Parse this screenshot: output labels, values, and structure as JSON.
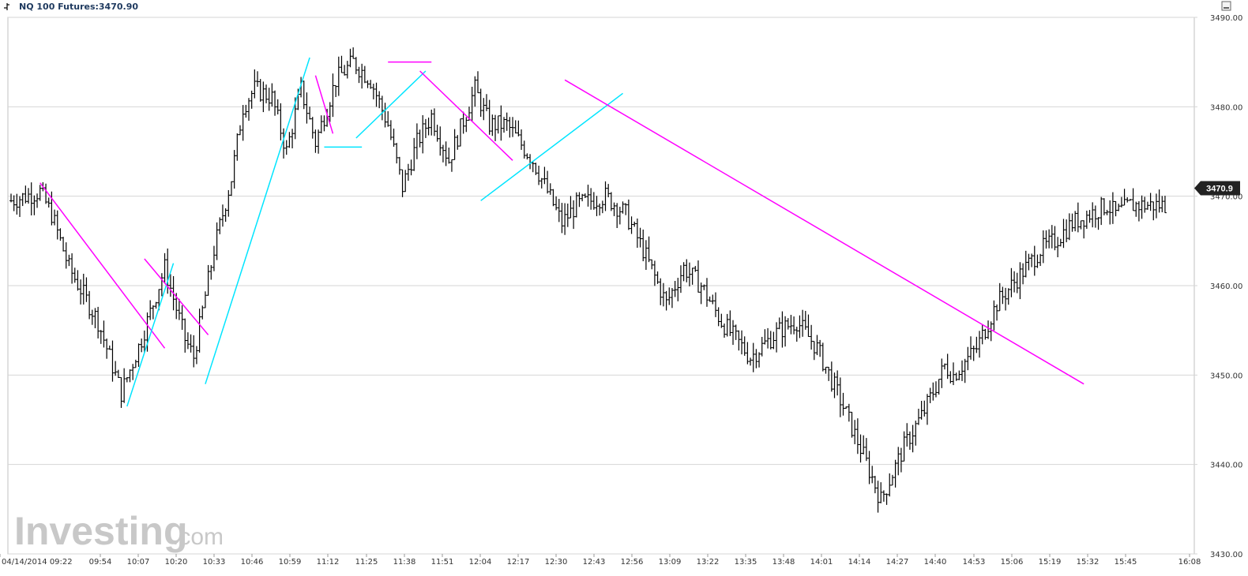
{
  "header": {
    "title": "NQ 100 Futures",
    "price": "3470.90",
    "left_icon": "bar-chart-icon",
    "right_icon": "minimize-icon"
  },
  "watermark": {
    "brand": "Investing",
    "suffix": ".com"
  },
  "price_badge": "3470.9",
  "colors": {
    "bars": "#000000",
    "downtrend": "#ff00ff",
    "uptrend": "#00e5ff",
    "grid": "#d6d6d6",
    "badge_bg": "#222222"
  },
  "chart_data": {
    "type": "bar",
    "subtype": "OHLC",
    "ylim": [
      3430,
      3490
    ],
    "y_ticks": [
      "3490.00",
      "3480.00",
      "3470.00",
      "3460.00",
      "3450.00",
      "3440.00",
      "3430.00"
    ],
    "x_ticks": [
      "04/14/2014 09:22",
      "09:54",
      "10:07",
      "10:20",
      "10:33",
      "10:46",
      "10:59",
      "11:12",
      "11:25",
      "11:38",
      "11:51",
      "12:04",
      "12:17",
      "12:30",
      "12:43",
      "12:56",
      "13:09",
      "13:22",
      "13:35",
      "13:48",
      "14:01",
      "14:14",
      "14:27",
      "14:40",
      "14:53",
      "15:06",
      "15:19",
      "15:32",
      "15:45",
      "16:08"
    ],
    "grid": true,
    "last_price": 3470.9,
    "close_path_minutes": [
      0,
      10,
      14,
      20,
      30,
      38,
      45,
      53,
      60,
      63,
      70,
      76,
      80,
      84,
      90,
      95,
      100,
      105,
      112,
      118,
      124,
      130,
      135,
      140,
      145,
      151,
      160,
      165,
      171,
      180,
      190,
      195,
      205,
      212,
      218,
      226,
      232,
      238,
      245,
      255,
      265,
      271,
      278,
      285,
      294,
      300,
      308,
      315,
      322,
      325,
      333,
      340,
      350,
      355,
      360,
      366,
      372,
      378,
      381,
      386,
      392,
      398
    ],
    "close_path_prices": [
      3469.5,
      3470.5,
      3468,
      3462,
      3456,
      3448,
      3454,
      3462,
      3454,
      3452,
      3464,
      3472,
      3480,
      3482,
      3481,
      3475,
      3482,
      3476,
      3483,
      3485,
      3483,
      3478,
      3471,
      3476,
      3479,
      3474,
      3482,
      3478,
      3478,
      3474,
      3467,
      3469,
      3470,
      3468,
      3464,
      3458,
      3462,
      3460,
      3456,
      3452,
      3455,
      3456,
      3453,
      3448,
      3441,
      3436,
      3442,
      3446,
      3451,
      3450,
      3453,
      3458,
      3462,
      3464,
      3465,
      3467,
      3468,
      3469,
      3468,
      3469,
      3469,
      3469
    ]
  },
  "trend_lines": [
    {
      "kind": "down",
      "from": [
        10,
        3471.5
      ],
      "to": [
        53,
        3453
      ]
    },
    {
      "kind": "up",
      "from": [
        40,
        3446.5
      ],
      "to": [
        56,
        3462.5
      ]
    },
    {
      "kind": "down",
      "from": [
        46,
        3463
      ],
      "to": [
        68,
        3454.5
      ]
    },
    {
      "kind": "up",
      "from": [
        67,
        3449
      ],
      "to": [
        103,
        3485.5
      ]
    },
    {
      "kind": "down",
      "from": [
        105,
        3483.5
      ],
      "to": [
        111,
        3477
      ]
    },
    {
      "kind": "hline-down",
      "from": [
        108,
        3475.5
      ],
      "to": [
        121,
        3475.5
      ]
    },
    {
      "kind": "up",
      "from": [
        119,
        3476.5
      ],
      "to": [
        143,
        3484
      ]
    },
    {
      "kind": "hline-down",
      "from": [
        130,
        3485
      ],
      "to": [
        145,
        3485
      ]
    },
    {
      "kind": "down",
      "from": [
        141,
        3484
      ],
      "to": [
        173,
        3474
      ]
    },
    {
      "kind": "up",
      "from": [
        162,
        3469.5
      ],
      "to": [
        211,
        3481.5
      ]
    },
    {
      "kind": "down",
      "from": [
        191,
        3483
      ],
      "to": [
        370,
        3449
      ]
    }
  ]
}
